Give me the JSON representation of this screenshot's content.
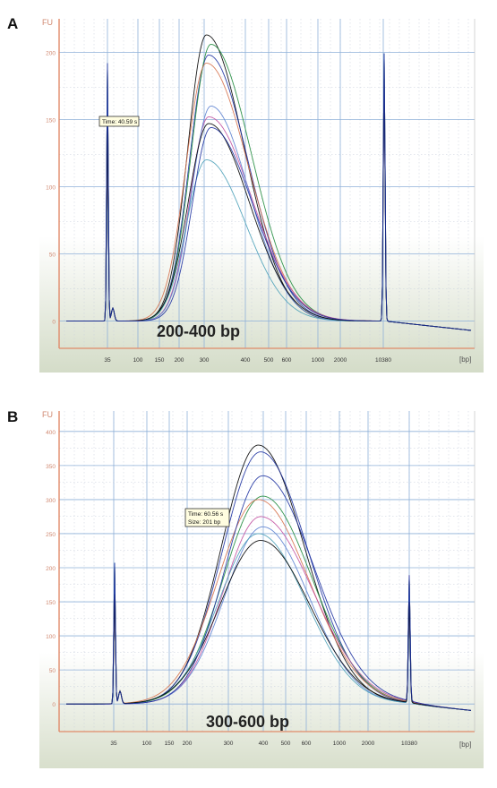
{
  "panels": [
    {
      "letter": "A"
    },
    {
      "letter": "B"
    }
  ],
  "chart_data": [
    {
      "type": "line",
      "axis_unit_y": "FU",
      "axis_unit_x": "[bp]",
      "x_tick_labels": [
        "35",
        "100",
        "150",
        "200",
        "300",
        "400",
        "500",
        "600",
        "1000",
        "2000",
        "10380"
      ],
      "y_tick_labels": [
        "0",
        "50",
        "100",
        "150",
        "200"
      ],
      "ylim": [
        -15,
        225
      ],
      "grid": true,
      "annotation": "200-400 bp",
      "tooltip": [
        "Time: 40.59 s"
      ],
      "colors": [
        "#000000",
        "#1b2fa0",
        "#1d8a3a",
        "#d6704a",
        "#c24fa0",
        "#5a80d0",
        "#4aa0b8"
      ],
      "series_peak_heights": [
        213,
        198,
        206,
        192,
        152,
        160,
        120,
        147,
        144
      ]
    },
    {
      "type": "line",
      "axis_unit_y": "FU",
      "axis_unit_x": "[bp]",
      "x_tick_labels": [
        "35",
        "100",
        "150",
        "200",
        "300",
        "400",
        "500",
        "600",
        "1000",
        "2000",
        "10380"
      ],
      "y_tick_labels": [
        "0",
        "50",
        "100",
        "150",
        "200",
        "250",
        "300",
        "350",
        "400"
      ],
      "ylim": [
        -30,
        430
      ],
      "grid": true,
      "annotation": "300-600 bp",
      "tooltip": [
        "Time: 60.56 s",
        "Size: 201 bp"
      ],
      "colors": [
        "#000000",
        "#1b2fa0",
        "#1d8a3a",
        "#d6704a",
        "#c24fa0",
        "#5a80d0",
        "#4aa0b8"
      ],
      "series_peak_heights": [
        380,
        370,
        305,
        300,
        275,
        260,
        250,
        240,
        335
      ]
    }
  ]
}
